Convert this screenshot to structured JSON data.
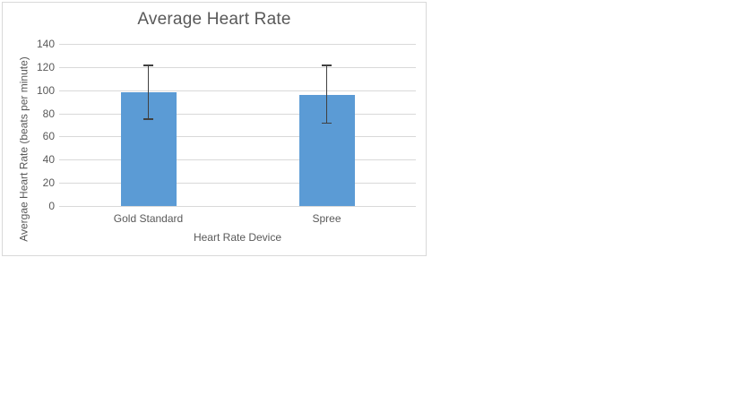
{
  "canvas": {
    "background": "#ffffff"
  },
  "chart_data": {
    "type": "bar",
    "title": "Average Heart Rate",
    "xlabel": "Heart Rate Device",
    "ylabel": "Avergae Heart Rate (beats per minute)",
    "categories": [
      "Gold Standard",
      "Spree"
    ],
    "values": [
      98,
      96
    ],
    "error_bars": {
      "upper": [
        121.5,
        121.5
      ],
      "lower": [
        75,
        71.5
      ]
    },
    "ylim": [
      0,
      140
    ],
    "yticks": [
      0,
      20,
      40,
      60,
      80,
      100,
      120,
      140
    ],
    "grid": true,
    "legend": false,
    "colors": {
      "bar": "#5b9bd5",
      "error_bar": "#404040",
      "gridline": "#d9d9d9",
      "text": "#595959",
      "frame_border": "#d9d9d9"
    }
  }
}
